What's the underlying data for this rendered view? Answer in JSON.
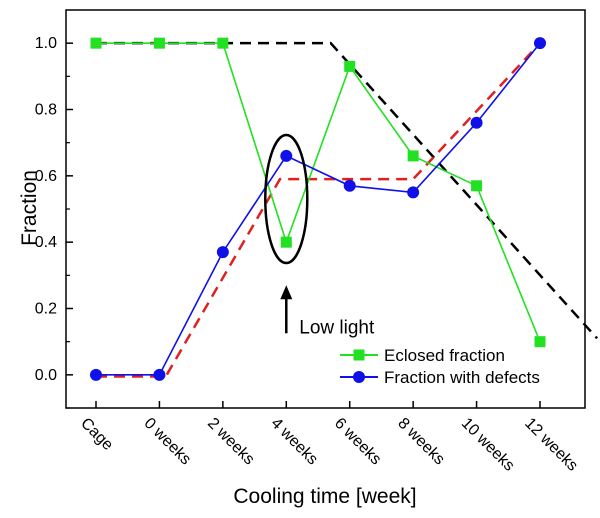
{
  "chart_data": {
    "type": "line",
    "title": "",
    "xlabel": "Cooling time [week]",
    "ylabel": "Fraction",
    "categories": [
      "Cage",
      "0 weeks",
      "2 weeks",
      "4 weeks",
      "6 weeks",
      "8 weeks",
      "10 weeks",
      "12 weeks"
    ],
    "ylim": [
      -0.1,
      1.1
    ],
    "yticks": [
      "0.0",
      "0.2",
      "0.4",
      "0.6",
      "0.8",
      "1.0"
    ],
    "grid": false,
    "legend_position": "bottom-right",
    "series": [
      {
        "name": "Eclosed fraction",
        "marker": "square",
        "color": "#22e022",
        "values": [
          1.0,
          1.0,
          1.0,
          0.4,
          0.93,
          0.66,
          0.57,
          0.1
        ]
      },
      {
        "name": "Fraction with defects",
        "marker": "circle",
        "color": "#1010e8",
        "values": [
          0.0,
          0.0,
          0.37,
          0.66,
          0.57,
          0.55,
          0.76,
          1.0
        ]
      }
    ],
    "trend_lines": [
      {
        "name": "eclosed-trend",
        "color": "#000000",
        "style": "dashed",
        "points": [
          [
            0,
            1.0
          ],
          [
            3.7,
            1.0
          ],
          [
            7.9,
            0.11
          ]
        ]
      },
      {
        "name": "defects-trend",
        "color": "#e02020",
        "style": "dashed",
        "points": [
          [
            0,
            -0.005
          ],
          [
            1.1,
            -0.005
          ],
          [
            2.9,
            0.59
          ],
          [
            5.0,
            0.59
          ],
          [
            7.0,
            1.0
          ]
        ]
      }
    ],
    "annotation": {
      "text": "Low light",
      "category_index": 3,
      "ellipse_center_value": 0.53,
      "arrow_tip_value": 0.27
    }
  }
}
